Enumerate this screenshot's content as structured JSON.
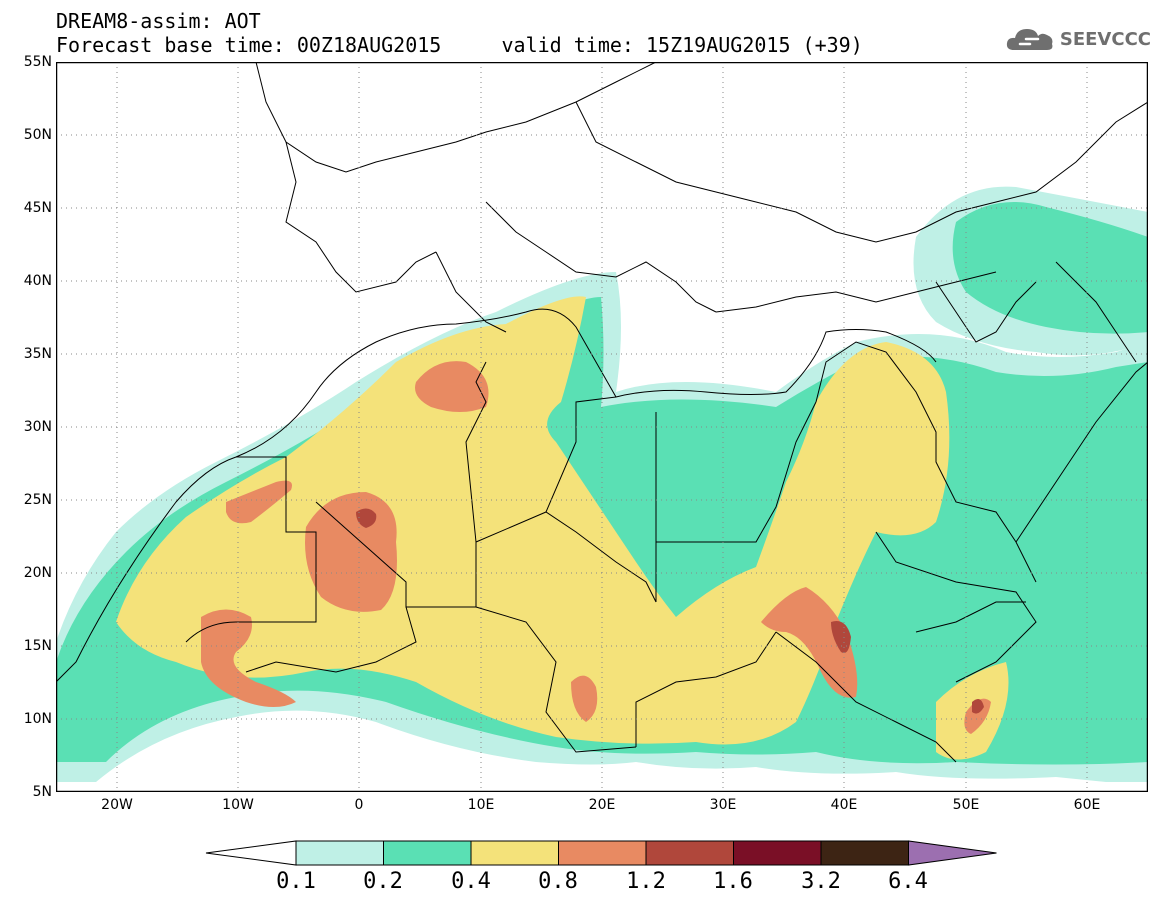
{
  "header": {
    "line1": "DREAM8-assim: AOT",
    "line2": "Forecast base time: 00Z18AUG2015     valid time: 15Z19AUG2015 (+39)"
  },
  "logo": {
    "text": "SEEVCCC",
    "icon": "cloud-icon",
    "color": "#6f6f6f"
  },
  "map": {
    "lat_labels": [
      "55N",
      "50N",
      "45N",
      "40N",
      "35N",
      "30N",
      "25N",
      "20N",
      "15N",
      "10N",
      "5N"
    ],
    "lon_labels": [
      "20W",
      "10W",
      "0",
      "10E",
      "20E",
      "30E",
      "40E",
      "50E",
      "60E"
    ],
    "lat_range": [
      5,
      55
    ],
    "lon_range": [
      -25,
      65
    ],
    "grid": "dotted"
  },
  "colorbar": {
    "labels": [
      "0.1",
      "0.2",
      "0.4",
      "0.8",
      "1.2",
      "1.6",
      "3.2",
      "6.4"
    ],
    "colors": [
      "#ffffff",
      "#bff0e6",
      "#5ae0b4",
      "#f4e27a",
      "#e88a62",
      "#b0473b",
      "#7a0f26",
      "#3d2414",
      "#9c6fb0"
    ]
  }
}
